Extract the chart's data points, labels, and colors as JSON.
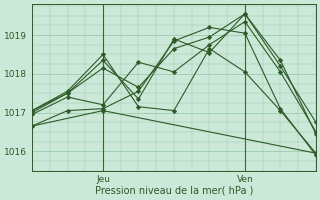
{
  "xlabel": "Pression niveau de la mer( hPa )",
  "bg_color": "#cce8d8",
  "grid_color": "#99ccb0",
  "line_color": "#2d5a27",
  "vline_color": "#3a6634",
  "xlim": [
    0,
    48
  ],
  "ylim": [
    1015.5,
    1019.8
  ],
  "yticks": [
    1016,
    1017,
    1018,
    1019
  ],
  "day_ticks": [
    {
      "label": "Jeu",
      "x": 12
    },
    {
      "label": "Ven",
      "x": 36
    }
  ],
  "series": [
    {
      "x": [
        0,
        6,
        12,
        18,
        24,
        30,
        36,
        42,
        48
      ],
      "y": [
        1016.65,
        1017.05,
        1017.1,
        1017.55,
        1018.85,
        1019.2,
        1019.05,
        1017.1,
        1015.9
      ]
    },
    {
      "x": [
        0,
        6,
        12,
        18,
        24,
        30,
        36,
        42,
        48
      ],
      "y": [
        1016.95,
        1017.4,
        1017.2,
        1018.3,
        1018.05,
        1018.75,
        1019.35,
        1018.05,
        1016.5
      ]
    },
    {
      "x": [
        0,
        6,
        12,
        18,
        24,
        30,
        36,
        42,
        48
      ],
      "y": [
        1017.0,
        1017.5,
        1018.15,
        1017.65,
        1018.65,
        1018.95,
        1019.55,
        1018.2,
        1016.75
      ]
    },
    {
      "x": [
        0,
        6,
        12,
        18,
        24,
        30,
        36,
        42,
        48
      ],
      "y": [
        1017.05,
        1017.5,
        1018.35,
        1017.35,
        1018.9,
        1018.55,
        1019.55,
        1018.35,
        1016.45
      ]
    },
    {
      "x": [
        0,
        6,
        12,
        18,
        24,
        30,
        36,
        42,
        48
      ],
      "y": [
        1017.05,
        1017.55,
        1018.5,
        1017.15,
        1017.05,
        1018.65,
        1018.05,
        1017.05,
        1015.95
      ]
    },
    {
      "x": [
        0,
        12,
        48
      ],
      "y": [
        1016.65,
        1017.05,
        1015.95
      ]
    }
  ]
}
